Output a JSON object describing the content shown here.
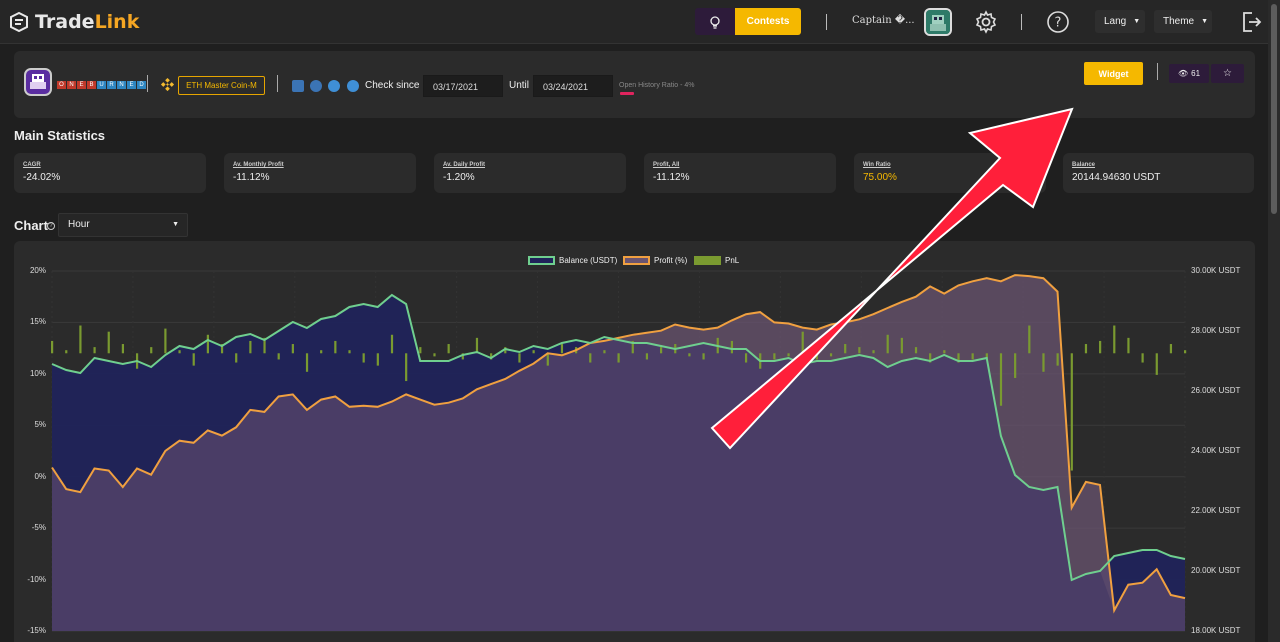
{
  "app": {
    "logo_part1": "Trade",
    "logo_part2": "Link"
  },
  "topbar": {
    "contests_label": "Contests",
    "user_name": "Captain �...",
    "lang_label": "Lang",
    "theme_label": "Theme",
    "accent": "#f5b800"
  },
  "bot": {
    "name_letters": [
      "O",
      "N",
      "E",
      "B",
      "U",
      "R",
      "N",
      "E",
      "D"
    ],
    "exchange_label": "ETH Master Coin-M",
    "check_since_label": "Check since",
    "since_date": "03/17/2021",
    "until_label": "Until",
    "until_date": "03/24/2021",
    "history_ratio_label": "Open History Ratio - 4%",
    "widget_label": "Widget",
    "views_count": "61"
  },
  "main_statistics": {
    "title": "Main Statistics",
    "cards": [
      {
        "label": "CAGR",
        "value": "-24.02%"
      },
      {
        "label": "Av. Monthly Profit",
        "value": "-11.12%"
      },
      {
        "label": "Av. Daily Profit",
        "value": "-1.20%"
      },
      {
        "label": "Profit, All",
        "value": "-11.12%"
      },
      {
        "label": "Win Ratio",
        "value": "75.00%"
      },
      {
        "label": "Balance",
        "value": "20144.94630 USDT"
      }
    ]
  },
  "chart_section": {
    "title": "Chart",
    "interval": "Hour"
  },
  "chart_data": {
    "type": "line",
    "legend": [
      "Balance (USDT)",
      "Profit (%)",
      "PnL"
    ],
    "colors": {
      "balance": "#6fcf8f",
      "profit": "#f0a040",
      "pnl": "#7a9a30"
    },
    "y_left_ticks": [
      "20%",
      "15%",
      "10%",
      "5%",
      "0%",
      "-5%",
      "-10%",
      "-15%"
    ],
    "y_left_range": [
      -15,
      20
    ],
    "y_right_ticks": [
      "30.00K USDT",
      "28.00K USDT",
      "26.00K USDT",
      "24.00K USDT",
      "22.00K USDT",
      "20.00K USDT",
      "18.00K USDT"
    ],
    "y_right_range": [
      18000,
      30000
    ],
    "balance": [
      26900,
      26700,
      26600,
      27100,
      27000,
      26900,
      27000,
      26800,
      27200,
      27500,
      27400,
      27700,
      27500,
      27800,
      27900,
      27700,
      28000,
      28300,
      28100,
      28400,
      28500,
      28800,
      28900,
      28800,
      29200,
      28900,
      27000,
      27000,
      27000,
      27200,
      27300,
      27100,
      27400,
      27300,
      27500,
      27400,
      27600,
      27700,
      27600,
      27800,
      27700,
      27600,
      27600,
      27500,
      27400,
      27500,
      27600,
      27500,
      27400,
      27400,
      27000,
      27000,
      27100,
      26900,
      27000,
      27000,
      27100,
      27200,
      27100,
      26800,
      27000,
      27100,
      27000,
      27200,
      27000,
      27000,
      27100,
      24500,
      23200,
      22800,
      22700,
      22800,
      19700,
      19900,
      20000,
      20500,
      20600,
      20700,
      20700,
      20500,
      20400
    ],
    "profit": [
      0.9,
      -1.2,
      -1.5,
      0.8,
      0.6,
      -1.0,
      0.8,
      0.2,
      2.5,
      3.5,
      3.3,
      4.5,
      4.0,
      4.8,
      6.5,
      6.3,
      7.8,
      8.0,
      6.5,
      7.5,
      7.8,
      6.8,
      6.9,
      6.8,
      7.3,
      8.0,
      7.5,
      7.0,
      7.2,
      7.6,
      8.5,
      9.0,
      9.5,
      10.3,
      11.0,
      12.0,
      11.8,
      12.3,
      13.0,
      13.2,
      13.5,
      13.8,
      14.0,
      14.2,
      14.8,
      14.5,
      14.3,
      14.5,
      15.2,
      15.8,
      16.0,
      15.0,
      14.9,
      14.5,
      14.3,
      14.8,
      15.0,
      15.3,
      15.8,
      16.4,
      17.0,
      17.5,
      18.5,
      17.8,
      18.6,
      19.0,
      19.3,
      19.0,
      19.6,
      19.5,
      19.3,
      18.0,
      -3.0,
      -0.5,
      -0.8,
      -13.0,
      -10.5,
      -10.3,
      -9.0,
      -11.5,
      -11.8
    ],
    "pnl": [
      0.4,
      0.1,
      0.9,
      0.2,
      0.7,
      0.3,
      -0.5,
      0.2,
      0.8,
      0.1,
      -0.4,
      0.6,
      0.3,
      -0.3,
      0.4,
      0.5,
      -0.2,
      0.3,
      -0.6,
      0.1,
      0.4,
      0.1,
      -0.3,
      -0.4,
      0.6,
      -0.9,
      0.2,
      -0.1,
      0.3,
      -0.2,
      0.5,
      -0.2,
      0.2,
      -0.3,
      0.1,
      -0.4,
      0.3,
      0.2,
      -0.3,
      0.1,
      -0.3,
      0.4,
      -0.2,
      0.2,
      0.3,
      -0.1,
      -0.2,
      0.5,
      0.4,
      -0.3,
      -0.5,
      -0.2,
      -0.1,
      0.7,
      -0.2,
      -0.1,
      0.3,
      0.2,
      0.1,
      0.6,
      0.5,
      0.2,
      -0.3,
      0.1,
      -0.3,
      -0.2,
      -0.2,
      -1.7,
      -0.8,
      0.9,
      -0.6,
      -0.4,
      -3.8,
      0.3,
      0.4,
      0.9,
      0.5,
      -0.3,
      -0.7,
      0.3,
      0.1
    ]
  }
}
